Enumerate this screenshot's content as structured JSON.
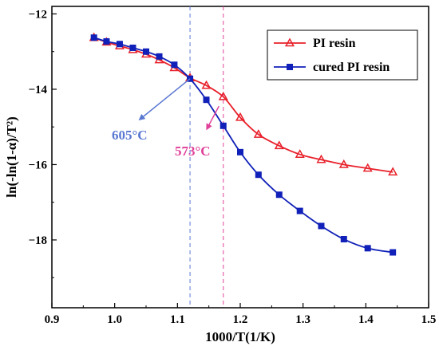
{
  "chart_data": {
    "type": "line",
    "xlabel": "1000/T(1/K)",
    "ylabel": "ln(-ln(1-α)/T²)",
    "xlim": [
      0.9,
      1.5
    ],
    "ylim": [
      -19.8,
      -11.8
    ],
    "xticks": [
      0.9,
      1.0,
      1.1,
      1.2,
      1.3,
      1.4,
      1.5
    ],
    "xtick_labels": [
      "0.9",
      "1.0",
      "1.1",
      "1.2",
      "1.3",
      "1.4",
      "1.5"
    ],
    "yticks": [
      -12,
      -14,
      -16,
      -18
    ],
    "ytick_labels": [
      "−12",
      "−14",
      "−16",
      "−18"
    ],
    "grid": false,
    "legend_position": "top-right",
    "series": [
      {
        "name": "PI resin",
        "color": "#e8202a",
        "marker": "triangle",
        "x": [
          0.967,
          0.987,
          1.008,
          1.029,
          1.05,
          1.071,
          1.095,
          1.12,
          1.146,
          1.173,
          1.2,
          1.229,
          1.262,
          1.295,
          1.329,
          1.365,
          1.403,
          1.443
        ],
        "y": [
          -12.63,
          -12.75,
          -12.85,
          -12.95,
          -13.07,
          -13.22,
          -13.43,
          -13.7,
          -13.9,
          -14.2,
          -14.75,
          -15.2,
          -15.5,
          -15.73,
          -15.87,
          -16.0,
          -16.1,
          -16.2
        ]
      },
      {
        "name": "cured PI resin",
        "color": "#1020b8",
        "marker": "square",
        "x": [
          0.967,
          0.987,
          1.008,
          1.029,
          1.05,
          1.071,
          1.095,
          1.12,
          1.146,
          1.173,
          1.2,
          1.229,
          1.262,
          1.295,
          1.329,
          1.365,
          1.403,
          1.443
        ],
        "y": [
          -12.63,
          -12.73,
          -12.8,
          -12.9,
          -13.0,
          -13.13,
          -13.35,
          -13.72,
          -14.28,
          -14.97,
          -15.67,
          -16.27,
          -16.8,
          -17.23,
          -17.63,
          -17.98,
          -18.22,
          -18.33
        ]
      }
    ],
    "annotations": [
      {
        "text": "605°C",
        "color": "#5a78d2",
        "x_line": 1.12,
        "arrow_from": [
          1.12,
          -13.72
        ],
        "arrow_to": [
          1.04,
          -14.8
        ]
      },
      {
        "text": "573°C",
        "color": "#e0409a",
        "x_line": 1.173,
        "arrow_from": [
          1.166,
          -14.45
        ],
        "arrow_to": [
          1.147,
          -15.05
        ]
      }
    ]
  }
}
